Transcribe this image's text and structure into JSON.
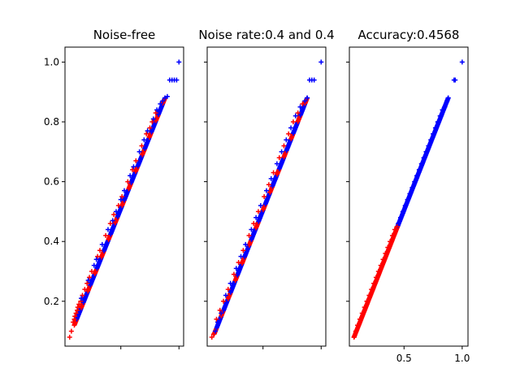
{
  "chart_data": [
    {
      "type": "scatter",
      "title": "Noise-free",
      "marker": "+",
      "xlim": [
        0.02,
        1.04
      ],
      "ylim": [
        0.05,
        1.05
      ],
      "yticks": [
        0.2,
        0.4,
        0.6,
        0.8,
        1.0
      ],
      "ytick_labels": [
        "0.2",
        "0.4",
        "0.6",
        "0.8",
        "1.0"
      ],
      "xticks": [
        0.5,
        1.0
      ],
      "xtick_labels": [
        "",
        ""
      ],
      "show_ytick_labels": true,
      "line": {
        "x0": 0.1,
        "y0": 0.12,
        "x1": 0.88,
        "y1": 0.88
      },
      "colors": {
        "class_a": "#ff0000",
        "class_b": "#0000ff"
      },
      "series": [
        {
          "color": "#ff0000",
          "x": [
            0.06,
            0.075,
            0.09,
            0.1,
            0.105,
            0.115,
            0.125,
            0.13,
            0.14,
            0.155,
            0.17,
            0.19,
            0.21,
            0.23,
            0.25,
            0.3,
            0.32,
            0.37,
            0.41,
            0.44,
            0.48,
            0.51,
            0.56,
            0.6,
            0.63,
            0.68,
            0.72,
            0.75,
            0.77,
            0.8
          ],
          "y": [
            0.08,
            0.1,
            0.13,
            0.14,
            0.15,
            0.16,
            0.17,
            0.18,
            0.19,
            0.2,
            0.22,
            0.24,
            0.26,
            0.28,
            0.3,
            0.35,
            0.37,
            0.42,
            0.46,
            0.49,
            0.52,
            0.55,
            0.6,
            0.64,
            0.67,
            0.72,
            0.76,
            0.78,
            0.8,
            0.83
          ]
        },
        {
          "color": "#0000ff",
          "x": [
            0.16,
            0.22,
            0.27,
            0.29,
            0.34,
            0.39,
            0.43,
            0.46,
            0.5,
            0.53,
            0.58,
            0.61,
            0.66,
            0.7,
            0.73,
            0.78,
            0.81,
            0.84,
            0.86,
            0.88,
            0.9,
            0.92,
            0.94,
            0.96,
            0.98,
            1.0
          ],
          "y": [
            0.21,
            0.27,
            0.32,
            0.34,
            0.39,
            0.44,
            0.47,
            0.5,
            0.54,
            0.57,
            0.62,
            0.65,
            0.7,
            0.74,
            0.77,
            0.81,
            0.84,
            0.86,
            0.87,
            0.88,
            0.885,
            0.94,
            0.94,
            0.94,
            0.94,
            1.0
          ]
        }
      ]
    },
    {
      "type": "scatter",
      "title": "Noise rate:0.4 and 0.4",
      "marker": "+",
      "xlim": [
        0.02,
        1.04
      ],
      "ylim": [
        0.05,
        1.05
      ],
      "yticks": [
        0.2,
        0.4,
        0.6,
        0.8,
        1.0
      ],
      "ytick_labels": [
        "",
        "",
        "",
        "",
        ""
      ],
      "xticks": [
        0.5,
        1.0
      ],
      "xtick_labels": [
        "",
        ""
      ],
      "show_ytick_labels": false,
      "line": {
        "x0": 0.08,
        "y0": 0.09,
        "x1": 0.88,
        "y1": 0.88
      },
      "colors": {
        "class_a": "#ff0000",
        "class_b": "#0000ff"
      },
      "series": [
        {
          "color": "#ff0000",
          "x": [
            0.06,
            0.075,
            0.1,
            0.13,
            0.16,
            0.2,
            0.25,
            0.29,
            0.33,
            0.38,
            0.42,
            0.46,
            0.51,
            0.55,
            0.59,
            0.64,
            0.68,
            0.72,
            0.76,
            0.8,
            0.84
          ],
          "y": [
            0.08,
            0.09,
            0.14,
            0.17,
            0.2,
            0.24,
            0.29,
            0.33,
            0.37,
            0.42,
            0.46,
            0.5,
            0.55,
            0.59,
            0.63,
            0.68,
            0.72,
            0.76,
            0.8,
            0.83,
            0.86
          ]
        },
        {
          "color": "#0000ff",
          "x": [
            0.09,
            0.11,
            0.14,
            0.18,
            0.22,
            0.27,
            0.31,
            0.35,
            0.4,
            0.44,
            0.48,
            0.53,
            0.57,
            0.62,
            0.66,
            0.7,
            0.74,
            0.78,
            0.82,
            0.86,
            0.88,
            0.9,
            0.92,
            0.94,
            1.0
          ],
          "y": [
            0.1,
            0.13,
            0.16,
            0.22,
            0.26,
            0.31,
            0.35,
            0.39,
            0.44,
            0.48,
            0.52,
            0.57,
            0.61,
            0.66,
            0.7,
            0.74,
            0.78,
            0.82,
            0.85,
            0.87,
            0.88,
            0.94,
            0.94,
            0.94,
            1.0
          ]
        }
      ]
    },
    {
      "type": "scatter",
      "title": "Accuracy:0.4568",
      "marker": "+",
      "xlim": [
        0.03,
        1.05
      ],
      "ylim": [
        0.05,
        1.05
      ],
      "yticks": [
        0.2,
        0.4,
        0.6,
        0.8,
        1.0
      ],
      "ytick_labels": [
        "",
        "",
        "",
        "",
        ""
      ],
      "xticks": [
        0.5,
        1.0
      ],
      "xtick_labels": [
        "0.5",
        "1.0"
      ],
      "show_ytick_labels": false,
      "line": {
        "x0": 0.07,
        "y0": 0.08,
        "x1": 0.88,
        "y1": 0.88
      },
      "colors": {
        "class_a": "#ff0000",
        "class_b": "#0000ff"
      },
      "series": [
        {
          "color": "#ff0000",
          "x": [
            0.07,
            0.085,
            0.1,
            0.12,
            0.14,
            0.16,
            0.18,
            0.2,
            0.22,
            0.24,
            0.26,
            0.28,
            0.3,
            0.32,
            0.34,
            0.36,
            0.38,
            0.4,
            0.42,
            0.44
          ],
          "y": [
            0.08,
            0.1,
            0.12,
            0.14,
            0.16,
            0.18,
            0.2,
            0.22,
            0.24,
            0.26,
            0.28,
            0.3,
            0.32,
            0.34,
            0.36,
            0.38,
            0.4,
            0.42,
            0.44,
            0.45
          ]
        },
        {
          "color": "#0000ff",
          "x": [
            0.45,
            0.47,
            0.49,
            0.51,
            0.53,
            0.55,
            0.57,
            0.59,
            0.61,
            0.63,
            0.65,
            0.67,
            0.69,
            0.71,
            0.73,
            0.75,
            0.77,
            0.79,
            0.81,
            0.83,
            0.85,
            0.87,
            0.88,
            0.93,
            0.94,
            1.0
          ],
          "y": [
            0.46,
            0.48,
            0.5,
            0.52,
            0.54,
            0.56,
            0.58,
            0.6,
            0.62,
            0.64,
            0.66,
            0.68,
            0.7,
            0.72,
            0.74,
            0.76,
            0.78,
            0.8,
            0.82,
            0.84,
            0.85,
            0.87,
            0.88,
            0.94,
            0.94,
            1.0
          ]
        }
      ]
    }
  ]
}
